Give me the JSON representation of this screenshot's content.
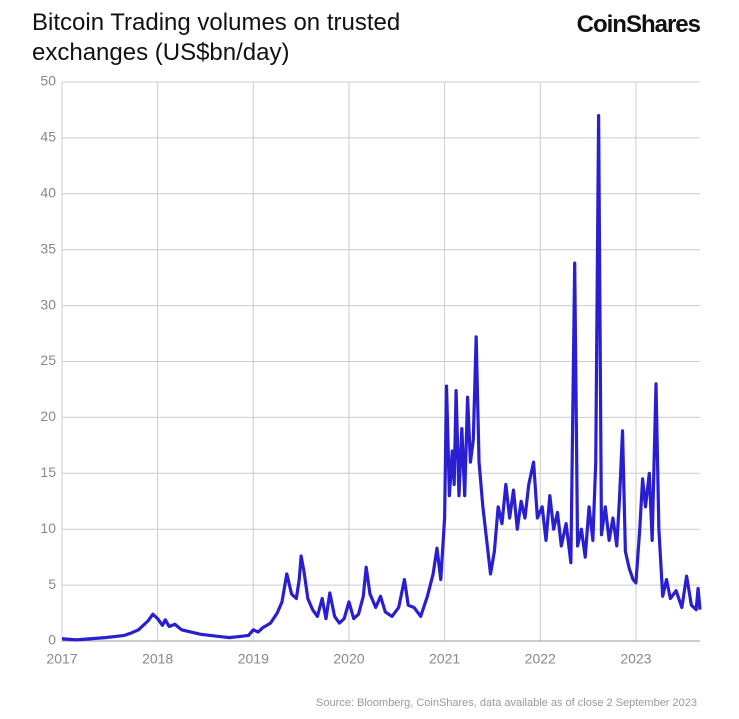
{
  "chart_data": {
    "type": "line",
    "title": "Bitcoin Trading volumes on trusted exchanges (US$bn/day)",
    "brand": "CoinShares",
    "source": "Source: Bloomberg, CoinShares, data available as of close 2 September 2023",
    "x": [
      2017.0,
      2017.15,
      2017.3,
      2017.45,
      2017.55,
      2017.65,
      2017.72,
      2017.8,
      2017.85,
      2017.9,
      2017.95,
      2018.0,
      2018.05,
      2018.08,
      2018.12,
      2018.18,
      2018.25,
      2018.35,
      2018.45,
      2018.55,
      2018.65,
      2018.75,
      2018.85,
      2018.95,
      2019.0,
      2019.05,
      2019.1,
      2019.18,
      2019.25,
      2019.3,
      2019.35,
      2019.4,
      2019.45,
      2019.48,
      2019.5,
      2019.53,
      2019.57,
      2019.62,
      2019.67,
      2019.72,
      2019.76,
      2019.8,
      2019.85,
      2019.9,
      2019.95,
      2020.0,
      2020.05,
      2020.1,
      2020.15,
      2020.18,
      2020.22,
      2020.28,
      2020.33,
      2020.38,
      2020.45,
      2020.52,
      2020.58,
      2020.62,
      2020.68,
      2020.75,
      2020.82,
      2020.88,
      2020.92,
      2020.96,
      2021.0,
      2021.02,
      2021.05,
      2021.08,
      2021.1,
      2021.12,
      2021.15,
      2021.18,
      2021.21,
      2021.24,
      2021.27,
      2021.3,
      2021.33,
      2021.36,
      2021.4,
      2021.44,
      2021.48,
      2021.52,
      2021.56,
      2021.6,
      2021.64,
      2021.68,
      2021.72,
      2021.76,
      2021.8,
      2021.84,
      2021.88,
      2021.93,
      2021.97,
      2022.02,
      2022.06,
      2022.1,
      2022.14,
      2022.18,
      2022.22,
      2022.27,
      2022.32,
      2022.36,
      2022.39,
      2022.43,
      2022.47,
      2022.51,
      2022.55,
      2022.58,
      2022.61,
      2022.64,
      2022.68,
      2022.72,
      2022.76,
      2022.8,
      2022.83,
      2022.86,
      2022.89,
      2022.93,
      2022.97,
      2023.0,
      2023.04,
      2023.07,
      2023.1,
      2023.14,
      2023.17,
      2023.21,
      2023.24,
      2023.28,
      2023.32,
      2023.36,
      2023.42,
      2023.48,
      2023.53,
      2023.58,
      2023.63,
      2023.65,
      2023.67
    ],
    "series": [
      {
        "name": "Bitcoin trading volume",
        "color": "#2a1fd0",
        "values": [
          0.2,
          0.1,
          0.2,
          0.3,
          0.4,
          0.5,
          0.7,
          1.0,
          1.4,
          1.8,
          2.4,
          2.0,
          1.4,
          1.9,
          1.3,
          1.5,
          1.0,
          0.8,
          0.6,
          0.5,
          0.4,
          0.3,
          0.4,
          0.5,
          1.0,
          0.8,
          1.2,
          1.6,
          2.5,
          3.5,
          6.0,
          4.2,
          3.8,
          5.5,
          7.6,
          6.2,
          3.8,
          2.8,
          2.2,
          3.8,
          2.0,
          4.3,
          2.2,
          1.6,
          2.0,
          3.5,
          2.0,
          2.4,
          4.0,
          6.6,
          4.2,
          3.0,
          4.0,
          2.6,
          2.2,
          3.0,
          5.5,
          3.2,
          3.0,
          2.2,
          4.0,
          6.0,
          8.3,
          5.5,
          11.0,
          22.8,
          13.0,
          17.0,
          14.0,
          22.4,
          13.0,
          19.0,
          13.0,
          21.8,
          16.0,
          18.0,
          27.2,
          16.0,
          12.0,
          9.0,
          6.0,
          8.0,
          12.0,
          10.5,
          14.0,
          11.0,
          13.5,
          10.0,
          12.5,
          11.0,
          14.0,
          16.0,
          11.0,
          12.0,
          9.0,
          13.0,
          10.0,
          11.5,
          8.5,
          10.5,
          7.0,
          33.8,
          8.5,
          10.0,
          7.5,
          12.0,
          9.0,
          16.0,
          47.0,
          9.5,
          12.0,
          9.0,
          11.0,
          8.5,
          13.0,
          18.8,
          8.0,
          6.5,
          5.5,
          5.2,
          10.0,
          14.5,
          12.0,
          15.0,
          9.0,
          23.0,
          10.0,
          4.0,
          5.5,
          3.8,
          4.5,
          3.0,
          5.8,
          3.2,
          2.8,
          4.7,
          2.8
        ]
      }
    ],
    "xlim": [
      2017,
      2023.67
    ],
    "xticks": [
      2017,
      2018,
      2019,
      2020,
      2021,
      2022,
      2023
    ],
    "ylim": [
      0,
      50
    ],
    "yticks": [
      0,
      5,
      10,
      15,
      20,
      25,
      30,
      35,
      40,
      45,
      50
    ],
    "grid": true
  }
}
